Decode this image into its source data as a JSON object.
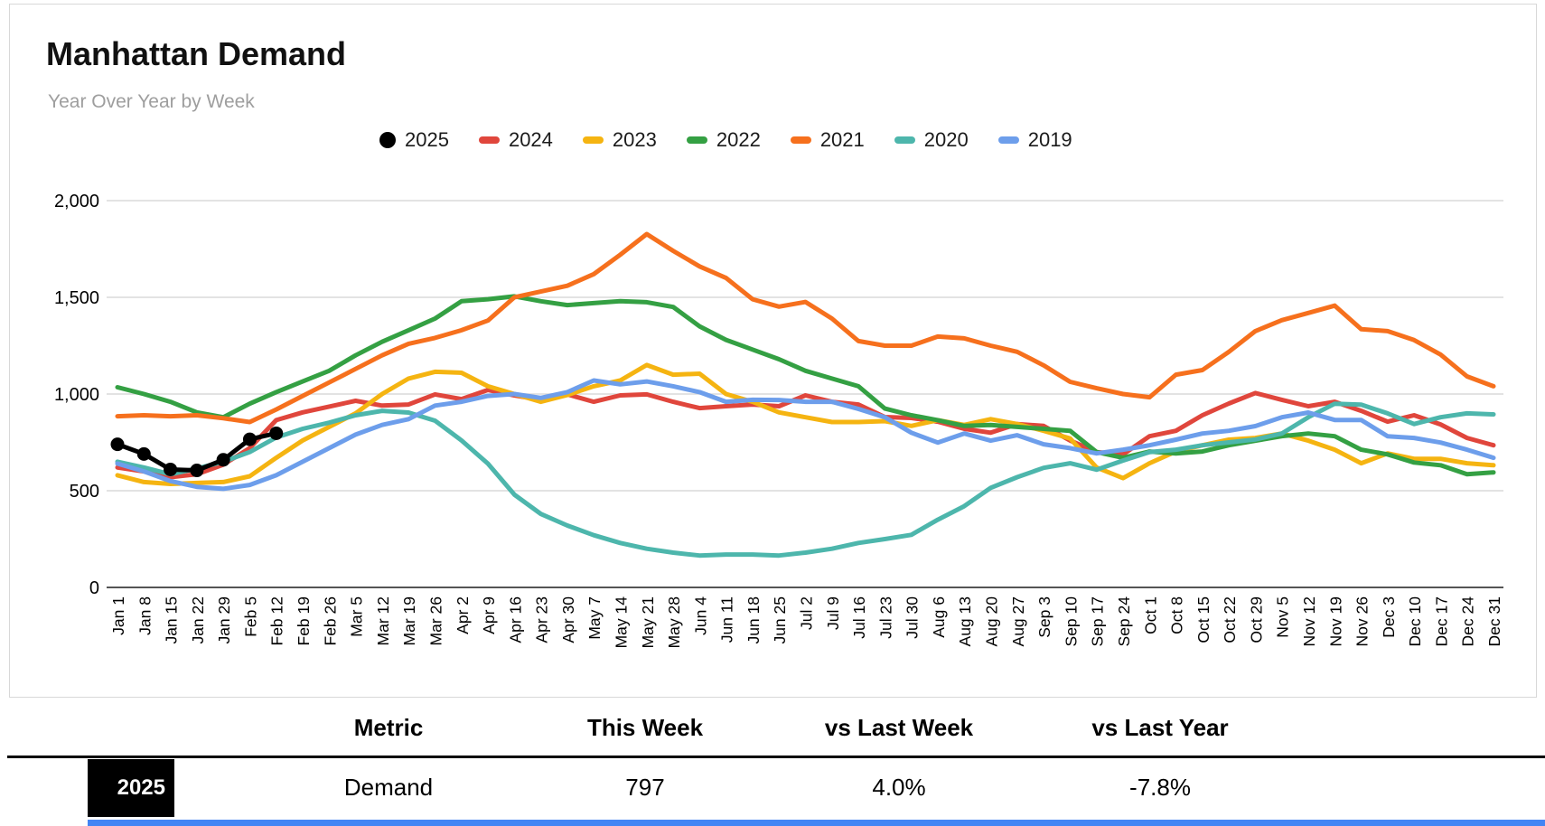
{
  "card": {
    "title": "Manhattan Demand",
    "subtitle": "Year Over Year by Week"
  },
  "chart_data": {
    "type": "line",
    "title": "Manhattan Demand",
    "subtitle": "Year Over Year by Week",
    "xlabel": "",
    "ylabel": "",
    "ylim": [
      0,
      2000
    ],
    "yticks": [
      0,
      500,
      1000,
      1500,
      2000
    ],
    "ytick_labels": [
      "0",
      "500",
      "1,000",
      "1,500",
      "2,000"
    ],
    "grid": true,
    "legend_position": "top",
    "categories": [
      "Jan 1",
      "Jan 8",
      "Jan 15",
      "Jan 22",
      "Jan 29",
      "Feb 5",
      "Feb 12",
      "Feb 19",
      "Feb 26",
      "Mar 5",
      "Mar 12",
      "Mar 19",
      "Mar 26",
      "Apr 2",
      "Apr 9",
      "Apr 16",
      "Apr 23",
      "Apr 30",
      "May 7",
      "May 14",
      "May 21",
      "May 28",
      "Jun 4",
      "Jun 11",
      "Jun 18",
      "Jun 25",
      "Jul 2",
      "Jul 9",
      "Jul 16",
      "Jul 23",
      "Jul 30",
      "Aug 6",
      "Aug 13",
      "Aug 20",
      "Aug 27",
      "Sep 3",
      "Sep 10",
      "Sep 17",
      "Sep 24",
      "Oct 1",
      "Oct 8",
      "Oct 15",
      "Oct 22",
      "Oct 29",
      "Nov 5",
      "Nov 12",
      "Nov 19",
      "Nov 26",
      "Dec 3",
      "Dec 10",
      "Dec 17",
      "Dec 24",
      "Dec 31"
    ],
    "series": [
      {
        "name": "2024",
        "color": "#e0463c",
        "marker": "none",
        "values": [
          620,
          600,
          570,
          585,
          635,
          720,
          865,
          905,
          935,
          965,
          940,
          946,
          998,
          974,
          1021,
          993,
          970,
          998,
          960,
          993,
          998,
          960,
          927,
          937,
          946,
          937,
          993,
          960,
          946,
          881,
          876,
          857,
          820,
          800,
          845,
          835,
          760,
          700,
          688,
          782,
          810,
          890,
          951,
          1005,
          970,
          937,
          960,
          913,
          857,
          890,
          843,
          773,
          735
        ]
      },
      {
        "name": "2023",
        "color": "#f5b411",
        "marker": "none",
        "values": [
          580,
          545,
          535,
          540,
          545,
          575,
          670,
          760,
          830,
          900,
          1000,
          1080,
          1115,
          1110,
          1040,
          1000,
          960,
          995,
          1040,
          1070,
          1150,
          1100,
          1105,
          1000,
          960,
          905,
          880,
          855,
          855,
          860,
          835,
          865,
          840,
          870,
          845,
          810,
          770,
          620,
          565,
          642,
          703,
          735,
          764,
          773,
          796,
          759,
          712,
          642,
          693,
          665,
          665,
          642,
          632
        ]
      },
      {
        "name": "2022",
        "color": "#34a043",
        "marker": "none",
        "values": [
          1035,
          1000,
          960,
          905,
          880,
          950,
          1010,
          1065,
          1120,
          1200,
          1270,
          1330,
          1390,
          1480,
          1490,
          1505,
          1480,
          1460,
          1470,
          1480,
          1475,
          1450,
          1350,
          1280,
          1230,
          1180,
          1120,
          1080,
          1040,
          925,
          890,
          865,
          835,
          840,
          830,
          820,
          810,
          700,
          670,
          703,
          693,
          703,
          735,
          759,
          782,
          796,
          782,
          712,
          688,
          646,
          632,
          585,
          595
        ]
      },
      {
        "name": "2021",
        "color": "#f6701d",
        "marker": "none",
        "values": [
          885,
          890,
          885,
          890,
          875,
          855,
          920,
          990,
          1060,
          1130,
          1200,
          1260,
          1290,
          1330,
          1380,
          1500,
          1530,
          1560,
          1620,
          1720,
          1827,
          1740,
          1660,
          1600,
          1490,
          1452,
          1476,
          1390,
          1274,
          1250,
          1250,
          1297,
          1288,
          1250,
          1218,
          1148,
          1063,
          1030,
          1000,
          983,
          1100,
          1124,
          1218,
          1325,
          1382,
          1419,
          1457,
          1335,
          1325,
          1279,
          1204,
          1091,
          1040
        ]
      },
      {
        "name": "2020",
        "color": "#4db6ac",
        "marker": "none",
        "values": [
          650,
          620,
          585,
          615,
          650,
          700,
          775,
          820,
          852,
          890,
          913,
          904,
          862,
          760,
          640,
          480,
          380,
          320,
          270,
          230,
          200,
          180,
          165,
          170,
          170,
          165,
          180,
          200,
          230,
          250,
          272,
          350,
          420,
          515,
          570,
          618,
          642,
          609,
          656,
          700,
          712,
          735,
          750,
          765,
          796,
          880,
          950,
          945,
          900,
          845,
          880,
          900,
          895
        ]
      },
      {
        "name": "2019",
        "color": "#6d9eeb",
        "marker": "none",
        "values": [
          640,
          600,
          550,
          520,
          510,
          530,
          580,
          650,
          720,
          790,
          840,
          870,
          940,
          960,
          990,
          1000,
          980,
          1010,
          1070,
          1050,
          1065,
          1040,
          1010,
          960,
          970,
          969,
          960,
          960,
          923,
          880,
          800,
          749,
          796,
          759,
          787,
          740,
          720,
          693,
          712,
          735,
          764,
          796,
          810,
          834,
          880,
          904,
          866,
          866,
          782,
          773,
          749,
          712,
          670
        ]
      },
      {
        "name": "2025",
        "color": "#000000",
        "marker": "circle",
        "values": [
          740,
          690,
          610,
          605,
          660,
          766,
          797
        ]
      }
    ],
    "legend_order": [
      "2025",
      "2024",
      "2023",
      "2022",
      "2021",
      "2020",
      "2019"
    ]
  },
  "table": {
    "headers": [
      "Metric",
      "This Week",
      "vs Last Week",
      "vs Last Year"
    ],
    "row": {
      "year": "2025",
      "metric": "Demand",
      "this_week": "797",
      "vs_last_week": "4.0%",
      "vs_last_year": "-7.8%"
    },
    "accent_color": "#4285f4"
  }
}
